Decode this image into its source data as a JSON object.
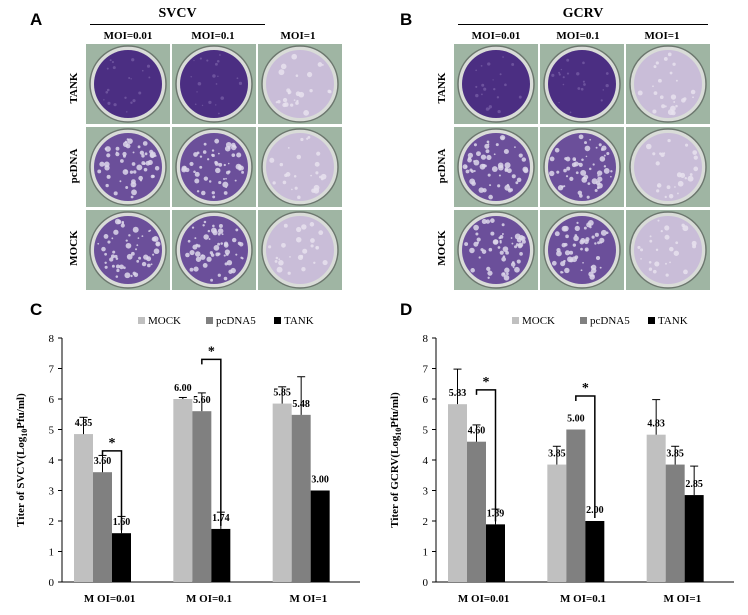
{
  "panels": {
    "A": {
      "letter": "A",
      "virus": "SVCV",
      "mois": [
        "MOI=0.01",
        "MOI=0.1",
        "MOI=1"
      ],
      "rows": [
        "TANK",
        "pcDNA",
        "MOCK"
      ]
    },
    "B": {
      "letter": "B",
      "virus": "GCRV",
      "mois": [
        "MOI=0.01",
        "MOI=0.1",
        "MOI=1"
      ],
      "rows": [
        "TANK",
        "pcDNA",
        "MOCK"
      ]
    }
  },
  "chart_data": [
    {
      "panel": "C",
      "type": "bar",
      "legend": [
        "MOCK",
        "pcDNA5",
        "TANK"
      ],
      "legend_position": "top",
      "categories": [
        "M OI=0.01",
        "M OI=0.1",
        "M OI=1"
      ],
      "ylabel_main": "Titer of SVCV(Log",
      "ylabel_sub": "10",
      "ylabel_end": "Pfu/ml)",
      "ylim": [
        0,
        8
      ],
      "yticks": [
        "0",
        "1",
        "2",
        "3",
        "4",
        "5",
        "6",
        "7",
        "8"
      ],
      "colors": [
        "#c0c0c0",
        "#808080",
        "#000000"
      ],
      "series": [
        {
          "name": "MOCK",
          "values": [
            4.85,
            6.0,
            5.85
          ],
          "errors": [
            0.55,
            0.05,
            0.55
          ],
          "labels": [
            "4.85",
            "6.00",
            "5.85"
          ]
        },
        {
          "name": "pcDNA5",
          "values": [
            3.6,
            5.6,
            5.48
          ],
          "errors": [
            0.55,
            0.6,
            1.25
          ],
          "labels": [
            "3.60",
            "5.60",
            "5.48"
          ]
        },
        {
          "name": "TANK",
          "values": [
            1.6,
            1.74,
            3.0
          ],
          "errors": [
            0.55,
            0.55,
            0.0
          ],
          "labels": [
            "1.60",
            "1.74",
            "3.00"
          ]
        }
      ],
      "significance": [
        {
          "group": 0,
          "from": 1,
          "to": 2,
          "label": "*",
          "level": 4.3
        },
        {
          "group": 1,
          "from": 1,
          "to": 2,
          "label": "*",
          "level": 7.3
        }
      ]
    },
    {
      "panel": "D",
      "type": "bar",
      "legend": [
        "MOCK",
        "pcDNA5",
        "TANK"
      ],
      "legend_position": "top",
      "categories": [
        "M OI=0.01",
        "M OI=0.1",
        "M OI=1"
      ],
      "ylabel_main": "Titer of GCRV(Log",
      "ylabel_sub": "10",
      "ylabel_end": "Pfu/ml)",
      "ylim": [
        0,
        8
      ],
      "yticks": [
        "0",
        "1",
        "2",
        "3",
        "4",
        "5",
        "6",
        "7",
        "8"
      ],
      "colors": [
        "#c0c0c0",
        "#808080",
        "#000000"
      ],
      "series": [
        {
          "name": "MOCK",
          "values": [
            5.83,
            3.85,
            4.83
          ],
          "errors": [
            1.15,
            0.6,
            1.15
          ],
          "labels": [
            "5.83",
            "3.85",
            "4.83"
          ]
        },
        {
          "name": "pcDNA5",
          "values": [
            4.6,
            5.0,
            3.85
          ],
          "errors": [
            0.55,
            0.0,
            0.6
          ],
          "labels": [
            "4.60",
            "5.00",
            "3.85"
          ]
        },
        {
          "name": "TANK",
          "values": [
            1.89,
            2.0,
            2.85
          ],
          "errors": [
            0.5,
            0.0,
            0.95
          ],
          "labels": [
            "1.89",
            "2.00",
            "2.85"
          ]
        }
      ],
      "significance": [
        {
          "group": 0,
          "from": 1,
          "to": 2,
          "label": "*",
          "level": 6.3
        },
        {
          "group": 1,
          "from": 1,
          "to": 2,
          "label": "*",
          "level": 6.1
        }
      ]
    }
  ]
}
